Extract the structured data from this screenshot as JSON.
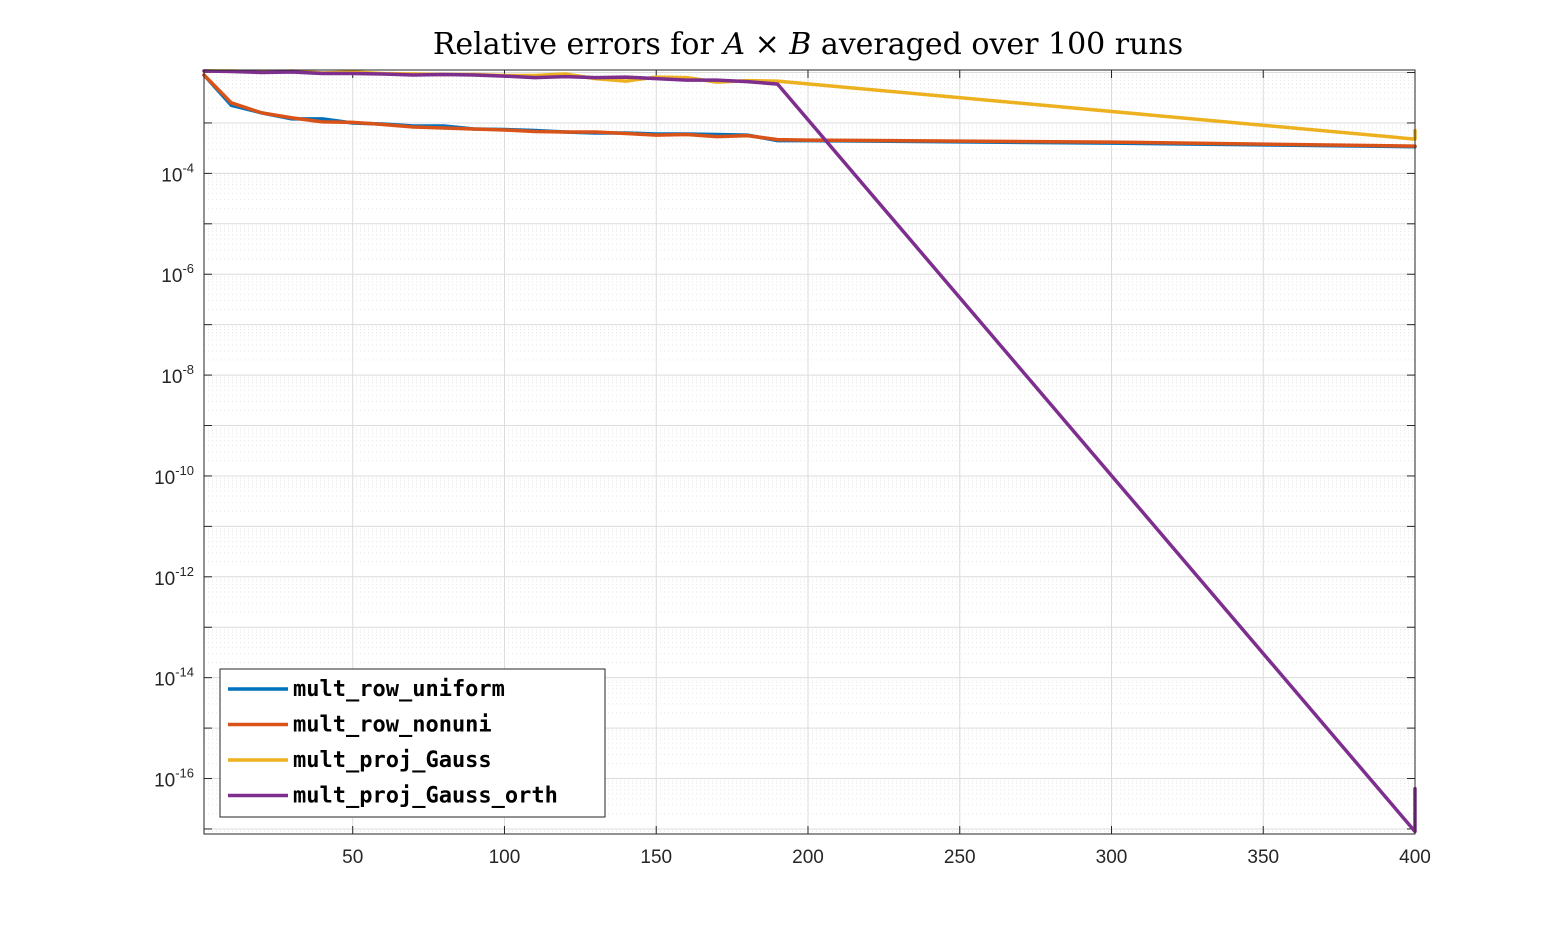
{
  "chart_data": {
    "type": "line",
    "title": "Relative errors for A × B averaged over 100 runs",
    "xlabel": "",
    "ylabel": "",
    "xlim": [
      1,
      400
    ],
    "ylim_log10": [
      -17.1,
      -1.95
    ],
    "y_scale": "log",
    "grid": true,
    "minor_grid": true,
    "legend_position": "bottom-left",
    "x_ticks": [
      50,
      100,
      150,
      200,
      250,
      300,
      350,
      400
    ],
    "y_ticks": [
      {
        "base": "10",
        "exp": "-4",
        "log": -4
      },
      {
        "base": "10",
        "exp": "-6",
        "log": -6
      },
      {
        "base": "10",
        "exp": "-8",
        "log": -8
      },
      {
        "base": "10",
        "exp": "-10",
        "log": -10
      },
      {
        "base": "10",
        "exp": "-12",
        "log": -12
      },
      {
        "base": "10",
        "exp": "-14",
        "log": -14
      },
      {
        "base": "10",
        "exp": "-16",
        "log": -16
      }
    ],
    "series": [
      {
        "name": "mult_row_uniform",
        "color": "#0072BD",
        "x": [
          1,
          10,
          20,
          30,
          40,
          50,
          60,
          70,
          80,
          90,
          100,
          110,
          120,
          130,
          140,
          150,
          160,
          170,
          180,
          190,
          200,
          300,
          400
        ],
        "y_log10": [
          -2.05,
          -2.65,
          -2.8,
          -2.92,
          -2.92,
          -3.0,
          -3.02,
          -3.06,
          -3.06,
          -3.12,
          -3.13,
          -3.15,
          -3.18,
          -3.2,
          -3.2,
          -3.22,
          -3.22,
          -3.23,
          -3.24,
          -3.35,
          -3.35,
          -3.4,
          -3.47
        ]
      },
      {
        "name": "mult_row_nonuni",
        "color": "#D95319",
        "x": [
          1,
          10,
          20,
          30,
          40,
          50,
          60,
          70,
          80,
          90,
          100,
          110,
          120,
          130,
          140,
          150,
          160,
          170,
          180,
          190,
          200,
          300,
          400
        ],
        "y_log10": [
          -2.05,
          -2.6,
          -2.8,
          -2.9,
          -2.98,
          -2.99,
          -3.03,
          -3.08,
          -3.1,
          -3.12,
          -3.14,
          -3.17,
          -3.18,
          -3.18,
          -3.21,
          -3.24,
          -3.23,
          -3.27,
          -3.25,
          -3.33,
          -3.34,
          -3.38,
          -3.46
        ]
      },
      {
        "name": "mult_proj_Gauss",
        "color": "#EDB120",
        "x": [
          1,
          10,
          20,
          30,
          40,
          50,
          60,
          70,
          80,
          90,
          100,
          110,
          120,
          130,
          140,
          150,
          160,
          170,
          180,
          190,
          400,
          400
        ],
        "y_log10": [
          -1.97,
          -1.97,
          -1.99,
          -1.97,
          -2.01,
          -1.99,
          -2.02,
          -2.03,
          -2.04,
          -2.04,
          -2.06,
          -2.06,
          -2.03,
          -2.12,
          -2.17,
          -2.09,
          -2.1,
          -2.19,
          -2.16,
          -2.17,
          -3.32,
          -3.15
        ]
      },
      {
        "name": "mult_proj_Gauss_orth",
        "color": "#7E2F8E",
        "x": [
          1,
          10,
          20,
          30,
          40,
          50,
          60,
          70,
          80,
          90,
          100,
          110,
          120,
          130,
          140,
          150,
          160,
          170,
          180,
          190,
          400,
          400
        ],
        "y_log10": [
          -1.97,
          -1.98,
          -2.0,
          -1.99,
          -2.02,
          -2.02,
          -2.03,
          -2.05,
          -2.04,
          -2.05,
          -2.07,
          -2.1,
          -2.08,
          -2.1,
          -2.09,
          -2.12,
          -2.15,
          -2.15,
          -2.18,
          -2.23,
          -17.05,
          -16.2
        ]
      }
    ]
  }
}
